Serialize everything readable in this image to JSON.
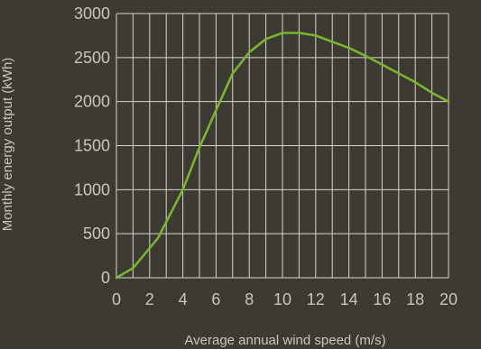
{
  "colors": {
    "background": "#3d3a33",
    "grid": "#d8d5cc",
    "line": "#7ab531",
    "text": "#c9c6bd"
  },
  "chart_data": {
    "type": "line",
    "title": "",
    "xlabel": "Average annual wind speed (m/s)",
    "ylabel": "Monthly energy output (kWh)",
    "xlim": [
      0,
      20
    ],
    "ylim": [
      0,
      3000
    ],
    "x_ticks": [
      "0",
      "2",
      "4",
      "6",
      "8",
      "10",
      "12",
      "14",
      "16",
      "18",
      "20"
    ],
    "y_ticks": [
      "0",
      "500",
      "1000",
      "1500",
      "2000",
      "2500",
      "3000"
    ],
    "grid": true,
    "legend": "none",
    "series": [
      {
        "x": [
          0,
          1,
          2.5,
          4,
          5,
          6,
          7,
          8,
          9,
          10,
          11,
          12,
          13,
          14,
          15,
          16,
          17,
          18,
          19,
          20
        ],
        "y": [
          0,
          110,
          450,
          1000,
          1480,
          1900,
          2320,
          2560,
          2710,
          2780,
          2780,
          2750,
          2680,
          2610,
          2520,
          2420,
          2320,
          2220,
          2100,
          2000
        ]
      }
    ]
  }
}
